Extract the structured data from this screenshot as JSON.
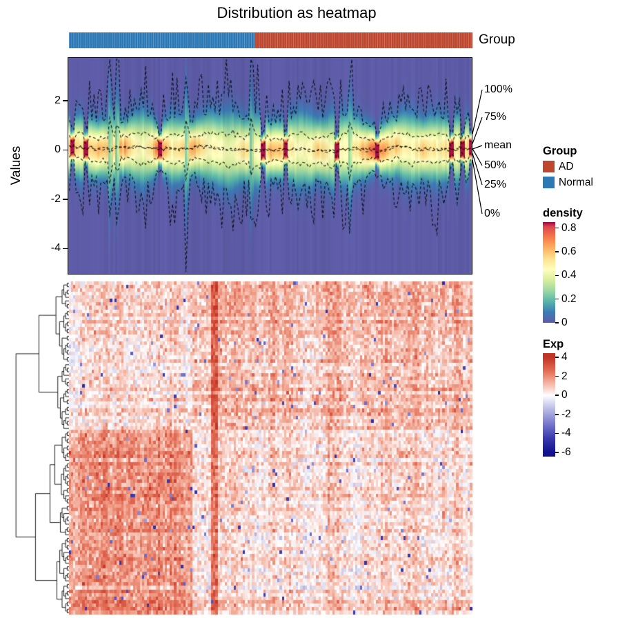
{
  "title": "Distribution as heatmap",
  "group_bar": {
    "label": "Group",
    "segments": [
      {
        "label": "Normal",
        "color": "#2D79B5",
        "fraction": 0.46
      },
      {
        "label": "AD",
        "color": "#BE4730",
        "fraction": 0.54
      }
    ]
  },
  "density_panel": {
    "ylabel": "Values",
    "ytick_labels": [
      "2",
      "0",
      "-2",
      "-4"
    ],
    "ytick_values": [
      2,
      0,
      -2,
      -4
    ],
    "quantile_labels": [
      "100%",
      "75%",
      "mean",
      "50%",
      "25%",
      "0%"
    ]
  },
  "legends": {
    "group": {
      "title": "Group",
      "items": [
        {
          "label": "AD",
          "color": "#BE4730"
        },
        {
          "label": "Normal",
          "color": "#2D79B5"
        }
      ]
    },
    "density": {
      "title": "density",
      "tick_labels": [
        "0.8",
        "0.6",
        "0.4",
        "0.2",
        "0"
      ],
      "tick_values": [
        0.8,
        0.6,
        0.4,
        0.2,
        0
      ],
      "domain": [
        0,
        0.85
      ]
    },
    "exp": {
      "title": "Exp",
      "tick_labels": [
        "4",
        "2",
        "0",
        "-2",
        "-4",
        "-6"
      ],
      "tick_values": [
        4,
        2,
        0,
        -2,
        -4,
        -6
      ],
      "domain": [
        -6.45,
        4.45
      ]
    }
  },
  "chart_data": [
    {
      "type": "heatmap",
      "name": "density-distribution-heatmap",
      "title": "Distribution as heatmap",
      "xlabel": "",
      "ylabel": "Values",
      "ylim": [
        -5.05,
        3.7
      ],
      "yticks": [
        2,
        0,
        -2,
        -4
      ],
      "n_columns": 180,
      "column_annotation": {
        "name": "Group",
        "groups": [
          {
            "label": "Normal",
            "color": "#2D79B5",
            "fraction": 0.46
          },
          {
            "label": "AD",
            "color": "#BE4730",
            "fraction": 0.54
          }
        ]
      },
      "quantile_lines": [
        "100%",
        "75%",
        "mean",
        "50%",
        "25%",
        "0%"
      ],
      "legend": {
        "title": "density",
        "ticks": [
          0.8,
          0.6,
          0.4,
          0.2,
          0
        ],
        "palette": "spectral-reversed"
      },
      "palette_stops": [
        [
          0,
          "#5E5CA7"
        ],
        [
          0.09,
          "#3C7CB5"
        ],
        [
          0.18,
          "#57B5A8"
        ],
        [
          0.27,
          "#9CD7A4"
        ],
        [
          0.36,
          "#D7EF9B"
        ],
        [
          0.45,
          "#FEFEBE"
        ],
        [
          0.54,
          "#FEE28F"
        ],
        [
          0.63,
          "#FDB163"
        ],
        [
          0.72,
          "#F67B49"
        ],
        [
          0.81,
          "#DC484C"
        ],
        [
          0.9,
          "#9E0142"
        ]
      ],
      "generator": {
        "seed": 7,
        "sigma_base": [
          0.5,
          0.95
        ],
        "mu_range": [
          -0.27,
          0.27
        ],
        "narrow_columns": 12,
        "wide_columns": 5,
        "density_cap": 0.88
      }
    },
    {
      "type": "heatmap",
      "name": "expression-heatmap",
      "rows": 94,
      "cols": 176,
      "row_cluster_split": 42,
      "row_dendrogram": "left",
      "legend": {
        "title": "Exp",
        "ticks": [
          4,
          2,
          0,
          -2,
          -4,
          -6
        ]
      },
      "palette_stops": [
        [
          -6,
          "#12128E"
        ],
        [
          -4.5,
          "#3A3AAE"
        ],
        [
          -3,
          "#7878CC"
        ],
        [
          -1.5,
          "#B8B8E4"
        ],
        [
          -0.5,
          "#E6E6F6"
        ],
        [
          0,
          "#FFFFFF"
        ],
        [
          0.6,
          "#FAD9D1"
        ],
        [
          1.5,
          "#F2A893"
        ],
        [
          2.5,
          "#E4705A"
        ],
        [
          3.3,
          "#D4503C"
        ],
        [
          4,
          "#C03527"
        ]
      ],
      "generator": {
        "seed": 11,
        "left_block_cols": 54,
        "hot_columns": [
          62,
          63,
          64
        ],
        "block_means": {
          "top_left": 0.55,
          "top_right": 1.0,
          "bottom_left": 1.85,
          "bottom_right": 0.5
        },
        "hot_column_boost": 2.2,
        "noise_sd": 0.6,
        "outlier_prob": 0.012,
        "outlier_range": [
          -5,
          -2
        ]
      }
    }
  ]
}
